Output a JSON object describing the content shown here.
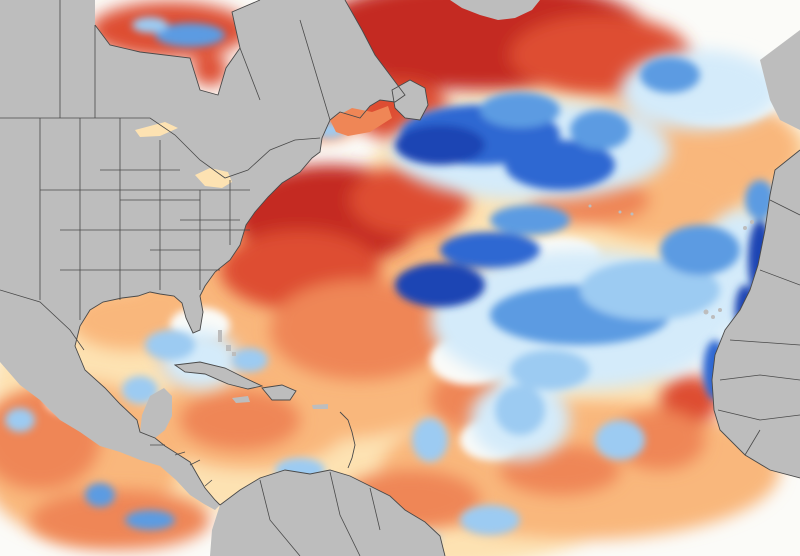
{
  "map": {
    "colors": {
      "land": "#bdbdbd",
      "border": "#4a4a4a",
      "ocean_neutral": "#fbfbf8",
      "warm_1": "#fde2b2",
      "warm_2": "#f9b77c",
      "warm_3": "#ef8656",
      "warm_4": "#de4e33",
      "warm_5": "#c42a24",
      "cool_1": "#d4ebfa",
      "cool_2": "#9ccbf2",
      "cool_3": "#5c9be2",
      "cool_4": "#2f67d2",
      "cool_5": "#1b44b4"
    },
    "warm_regions": [
      {
        "name": "hudson-bay-warm",
        "level": 4
      },
      {
        "name": "labrador-sea-warm",
        "level": 5
      },
      {
        "name": "us-east-coast-warm",
        "level": 5
      },
      {
        "name": "gulf-of-mexico-warm",
        "level": 2
      },
      {
        "name": "caribbean-warm",
        "level": 2
      },
      {
        "name": "eastern-pacific-warm",
        "level": 3
      },
      {
        "name": "mid-atlantic-warm",
        "level": 3
      },
      {
        "name": "northeast-atlantic-warm",
        "level": 2
      },
      {
        "name": "south-atlantic-warm",
        "level": 2
      }
    ],
    "cool_regions": [
      {
        "name": "newfoundland-cool",
        "level": 5
      },
      {
        "name": "central-atlantic-cool",
        "level": 4
      },
      {
        "name": "tropical-atlantic-cool",
        "level": 3
      },
      {
        "name": "west-africa-coast-cool",
        "level": 5
      },
      {
        "name": "hudson-bay-cool",
        "level": 3
      },
      {
        "name": "caribbean-cool",
        "level": 2
      },
      {
        "name": "pacific-coast-cool",
        "level": 3
      }
    ]
  }
}
